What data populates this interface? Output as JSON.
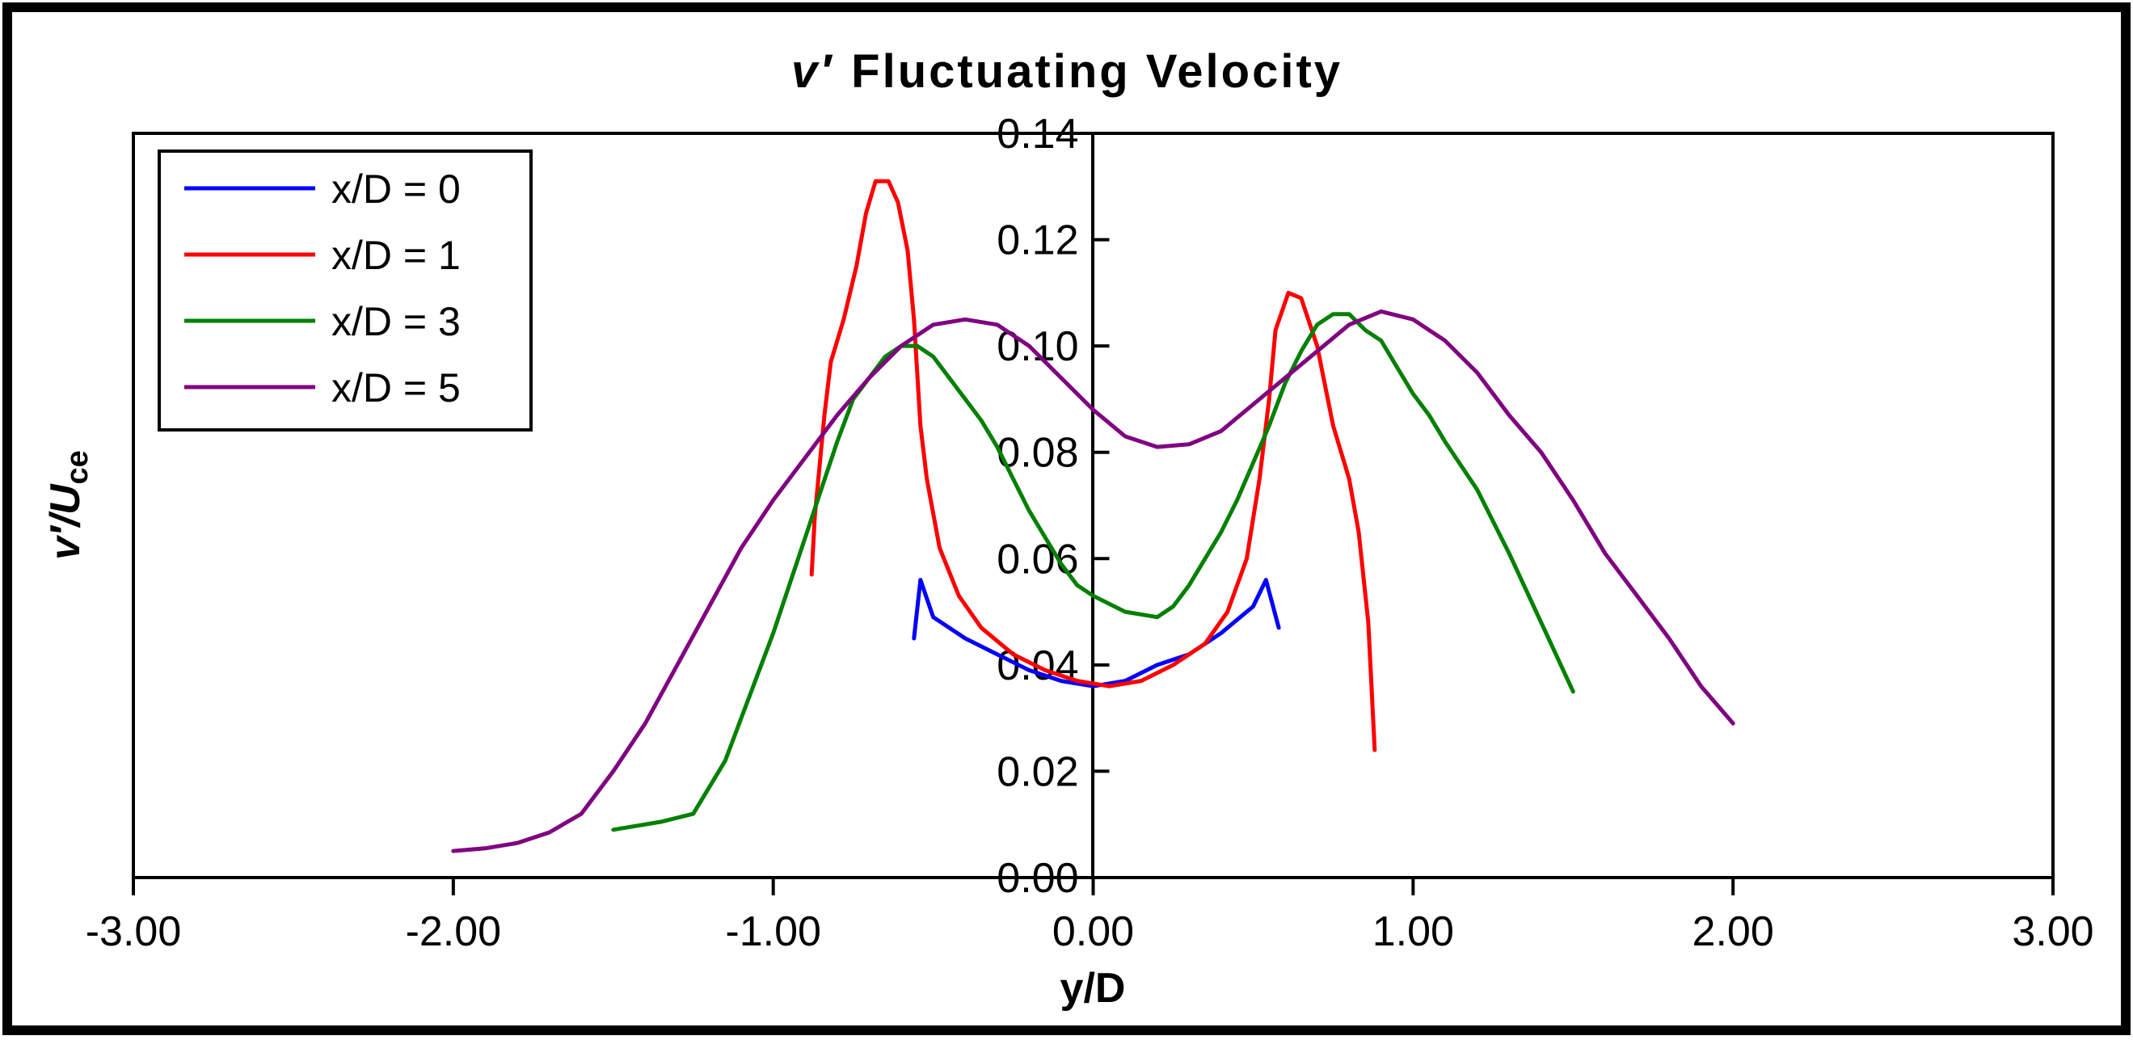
{
  "chart_data": {
    "type": "line",
    "title_prefix": "v′",
    "title": "Fluctuating Velocity",
    "xlabel": "y/D",
    "ylabel_prefix": "v′/U",
    "ylabel_sub": "ce",
    "xlim": [
      -3,
      3
    ],
    "ylim": [
      0,
      0.14
    ],
    "x_ticks": [
      "-3.00",
      "-2.00",
      "-1.00",
      "0.00",
      "1.00",
      "2.00",
      "3.00"
    ],
    "y_ticks": [
      "0.00",
      "0.02",
      "0.04",
      "0.06",
      "0.08",
      "0.10",
      "0.12",
      "0.14"
    ],
    "legend_position": "top-left",
    "series": [
      {
        "name": "x/D = 0",
        "color": "#0000ff",
        "points": [
          [
            -0.56,
            0.045
          ],
          [
            -0.54,
            0.056
          ],
          [
            -0.5,
            0.049
          ],
          [
            -0.45,
            0.047
          ],
          [
            -0.4,
            0.045
          ],
          [
            -0.3,
            0.042
          ],
          [
            -0.2,
            0.039
          ],
          [
            -0.1,
            0.037
          ],
          [
            0.0,
            0.036
          ],
          [
            0.1,
            0.037
          ],
          [
            0.2,
            0.04
          ],
          [
            0.3,
            0.042
          ],
          [
            0.4,
            0.046
          ],
          [
            0.5,
            0.051
          ],
          [
            0.54,
            0.056
          ],
          [
            0.58,
            0.047
          ]
        ]
      },
      {
        "name": "x/D = 1",
        "color": "#ff0000",
        "points": [
          [
            -0.88,
            0.057
          ],
          [
            -0.87,
            0.068
          ],
          [
            -0.84,
            0.087
          ],
          [
            -0.82,
            0.097
          ],
          [
            -0.78,
            0.105
          ],
          [
            -0.74,
            0.115
          ],
          [
            -0.71,
            0.125
          ],
          [
            -0.68,
            0.131
          ],
          [
            -0.64,
            0.131
          ],
          [
            -0.61,
            0.127
          ],
          [
            -0.58,
            0.118
          ],
          [
            -0.56,
            0.105
          ],
          [
            -0.55,
            0.095
          ],
          [
            -0.54,
            0.085
          ],
          [
            -0.52,
            0.075
          ],
          [
            -0.48,
            0.062
          ],
          [
            -0.42,
            0.053
          ],
          [
            -0.35,
            0.047
          ],
          [
            -0.25,
            0.042
          ],
          [
            -0.15,
            0.039
          ],
          [
            -0.05,
            0.037
          ],
          [
            0.05,
            0.036
          ],
          [
            0.15,
            0.037
          ],
          [
            0.25,
            0.04
          ],
          [
            0.35,
            0.044
          ],
          [
            0.42,
            0.05
          ],
          [
            0.48,
            0.06
          ],
          [
            0.52,
            0.075
          ],
          [
            0.55,
            0.09
          ],
          [
            0.57,
            0.103
          ],
          [
            0.61,
            0.11
          ],
          [
            0.65,
            0.109
          ],
          [
            0.7,
            0.1
          ],
          [
            0.75,
            0.085
          ],
          [
            0.8,
            0.075
          ],
          [
            0.83,
            0.065
          ],
          [
            0.86,
            0.048
          ],
          [
            0.88,
            0.024
          ]
        ]
      },
      {
        "name": "x/D = 3",
        "color": "#008000",
        "points": [
          [
            -1.5,
            0.009
          ],
          [
            -1.35,
            0.0105
          ],
          [
            -1.25,
            0.012
          ],
          [
            -1.2,
            0.017
          ],
          [
            -1.15,
            0.022
          ],
          [
            -1.1,
            0.03
          ],
          [
            -1.05,
            0.038
          ],
          [
            -1.0,
            0.046
          ],
          [
            -0.95,
            0.055
          ],
          [
            -0.9,
            0.064
          ],
          [
            -0.85,
            0.073
          ],
          [
            -0.8,
            0.082
          ],
          [
            -0.75,
            0.09
          ],
          [
            -0.7,
            0.094
          ],
          [
            -0.65,
            0.098
          ],
          [
            -0.6,
            0.1
          ],
          [
            -0.55,
            0.1
          ],
          [
            -0.5,
            0.098
          ],
          [
            -0.45,
            0.094
          ],
          [
            -0.4,
            0.09
          ],
          [
            -0.35,
            0.086
          ],
          [
            -0.3,
            0.081
          ],
          [
            -0.25,
            0.075
          ],
          [
            -0.2,
            0.069
          ],
          [
            -0.15,
            0.064
          ],
          [
            -0.1,
            0.059
          ],
          [
            -0.05,
            0.055
          ],
          [
            0.0,
            0.053
          ],
          [
            0.1,
            0.05
          ],
          [
            0.2,
            0.049
          ],
          [
            0.25,
            0.051
          ],
          [
            0.3,
            0.055
          ],
          [
            0.35,
            0.06
          ],
          [
            0.4,
            0.065
          ],
          [
            0.45,
            0.071
          ],
          [
            0.5,
            0.078
          ],
          [
            0.55,
            0.085
          ],
          [
            0.6,
            0.093
          ],
          [
            0.65,
            0.099
          ],
          [
            0.7,
            0.104
          ],
          [
            0.75,
            0.106
          ],
          [
            0.8,
            0.106
          ],
          [
            0.85,
            0.103
          ],
          [
            0.9,
            0.101
          ],
          [
            0.95,
            0.096
          ],
          [
            1.0,
            0.091
          ],
          [
            1.05,
            0.087
          ],
          [
            1.1,
            0.082
          ],
          [
            1.2,
            0.073
          ],
          [
            1.3,
            0.061
          ],
          [
            1.4,
            0.048
          ],
          [
            1.5,
            0.035
          ]
        ]
      },
      {
        "name": "x/D = 5",
        "color": "#800080",
        "points": [
          [
            -2.0,
            0.005
          ],
          [
            -1.9,
            0.0055
          ],
          [
            -1.8,
            0.0065
          ],
          [
            -1.7,
            0.0085
          ],
          [
            -1.6,
            0.012
          ],
          [
            -1.5,
            0.02
          ],
          [
            -1.4,
            0.029
          ],
          [
            -1.3,
            0.04
          ],
          [
            -1.2,
            0.051
          ],
          [
            -1.1,
            0.062
          ],
          [
            -1.0,
            0.071
          ],
          [
            -0.9,
            0.079
          ],
          [
            -0.8,
            0.087
          ],
          [
            -0.7,
            0.094
          ],
          [
            -0.6,
            0.1
          ],
          [
            -0.5,
            0.104
          ],
          [
            -0.4,
            0.105
          ],
          [
            -0.3,
            0.104
          ],
          [
            -0.2,
            0.1
          ],
          [
            -0.1,
            0.094
          ],
          [
            0.0,
            0.088
          ],
          [
            0.1,
            0.083
          ],
          [
            0.2,
            0.081
          ],
          [
            0.3,
            0.0815
          ],
          [
            0.4,
            0.084
          ],
          [
            0.5,
            0.089
          ],
          [
            0.6,
            0.094
          ],
          [
            0.7,
            0.099
          ],
          [
            0.8,
            0.104
          ],
          [
            0.9,
            0.1065
          ],
          [
            1.0,
            0.105
          ],
          [
            1.1,
            0.101
          ],
          [
            1.2,
            0.095
          ],
          [
            1.3,
            0.087
          ],
          [
            1.4,
            0.08
          ],
          [
            1.5,
            0.071
          ],
          [
            1.6,
            0.061
          ],
          [
            1.7,
            0.053
          ],
          [
            1.8,
            0.045
          ],
          [
            1.9,
            0.036
          ],
          [
            2.0,
            0.029
          ]
        ]
      }
    ]
  }
}
